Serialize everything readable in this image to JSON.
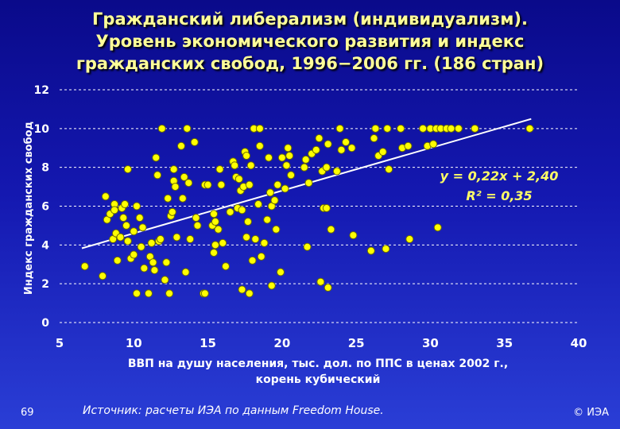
{
  "title_lines": [
    "Гражданский либерализм (индивидуализм).",
    "Уровень экономического развития и индекс",
    "гражданских свобод, 1996−2006 гг. (186 стран)"
  ],
  "page_number": "69",
  "source": "Источник: расчеты ИЭА по данным Freedom House.",
  "copyright": "© ИЭА",
  "colors": {
    "point": "#ffff00",
    "point_stroke": "#6b6b00",
    "trendline": "#ffffff",
    "annotation": "#ffff66"
  },
  "chart_data": {
    "type": "scatter",
    "xlabel_lines": [
      "ВВП на душу населения, тыс. дол. по ППС в ценах 2002 г.,",
      "корень кубический"
    ],
    "ylabel": "Индекс гражданских свобод",
    "xlim": [
      5,
      40
    ],
    "ylim": [
      0,
      12
    ],
    "x_ticks": [
      "5",
      "10",
      "15",
      "20",
      "25",
      "30",
      "35",
      "40"
    ],
    "y_ticks": [
      "0",
      "2",
      "4",
      "6",
      "8",
      "10",
      "12"
    ],
    "grid": "horizontal dashed",
    "trendline": {
      "slope": 0.22,
      "intercept": 2.4,
      "x_range": [
        6.5,
        36.8
      ]
    },
    "equation": "y = 0,22x + 2,40",
    "r_squared": "R² = 0,35",
    "points": [
      [
        6.7,
        2.9
      ],
      [
        7.9,
        2.4
      ],
      [
        8.1,
        6.5
      ],
      [
        8.2,
        5.3
      ],
      [
        8.4,
        5.6
      ],
      [
        8.6,
        4.3
      ],
      [
        8.7,
        6.1
      ],
      [
        8.7,
        5.8
      ],
      [
        8.8,
        4.6
      ],
      [
        8.9,
        3.2
      ],
      [
        9.1,
        4.4
      ],
      [
        9.2,
        5.9
      ],
      [
        9.3,
        5.4
      ],
      [
        9.4,
        6.1
      ],
      [
        9.5,
        5.0
      ],
      [
        9.6,
        4.2
      ],
      [
        9.6,
        7.9
      ],
      [
        9.8,
        3.3
      ],
      [
        10.0,
        3.5
      ],
      [
        10.0,
        4.7
      ],
      [
        10.2,
        6.0
      ],
      [
        10.2,
        1.5
      ],
      [
        10.4,
        5.4
      ],
      [
        10.5,
        3.9
      ],
      [
        10.6,
        4.9
      ],
      [
        10.7,
        2.8
      ],
      [
        11.0,
        1.5
      ],
      [
        11.1,
        3.4
      ],
      [
        11.2,
        4.1
      ],
      [
        11.3,
        3.1
      ],
      [
        11.4,
        2.7
      ],
      [
        11.5,
        8.5
      ],
      [
        11.6,
        7.6
      ],
      [
        11.7,
        4.2
      ],
      [
        11.8,
        4.3
      ],
      [
        11.9,
        10.0
      ],
      [
        12.1,
        2.2
      ],
      [
        12.2,
        3.1
      ],
      [
        12.3,
        6.4
      ],
      [
        12.4,
        1.5
      ],
      [
        12.5,
        5.5
      ],
      [
        12.6,
        5.7
      ],
      [
        12.7,
        7.3
      ],
      [
        12.7,
        7.9
      ],
      [
        12.8,
        7.0
      ],
      [
        12.9,
        4.4
      ],
      [
        13.2,
        9.1
      ],
      [
        13.3,
        6.4
      ],
      [
        13.4,
        7.5
      ],
      [
        13.5,
        2.6
      ],
      [
        13.6,
        10.0
      ],
      [
        13.7,
        7.2
      ],
      [
        13.8,
        4.3
      ],
      [
        14.1,
        9.3
      ],
      [
        14.2,
        5.4
      ],
      [
        14.3,
        5.0
      ],
      [
        14.7,
        1.5
      ],
      [
        14.8,
        7.1
      ],
      [
        14.8,
        1.5
      ],
      [
        15.0,
        7.1
      ],
      [
        15.3,
        5.0
      ],
      [
        15.4,
        5.6
      ],
      [
        15.4,
        3.6
      ],
      [
        15.5,
        4.0
      ],
      [
        15.5,
        5.2
      ],
      [
        15.7,
        4.8
      ],
      [
        15.8,
        7.9
      ],
      [
        15.9,
        7.1
      ],
      [
        16.0,
        4.1
      ],
      [
        16.2,
        2.9
      ],
      [
        16.5,
        5.7
      ],
      [
        16.7,
        8.3
      ],
      [
        16.8,
        8.1
      ],
      [
        16.9,
        7.5
      ],
      [
        17.0,
        5.9
      ],
      [
        17.1,
        7.4
      ],
      [
        17.2,
        6.8
      ],
      [
        17.3,
        5.8
      ],
      [
        17.3,
        1.7
      ],
      [
        17.4,
        7.0
      ],
      [
        17.5,
        8.8
      ],
      [
        17.6,
        8.6
      ],
      [
        17.6,
        4.4
      ],
      [
        17.7,
        5.2
      ],
      [
        17.8,
        7.1
      ],
      [
        17.8,
        1.5
      ],
      [
        17.9,
        8.1
      ],
      [
        18.0,
        3.2
      ],
      [
        18.1,
        10.0
      ],
      [
        18.2,
        4.3
      ],
      [
        18.4,
        6.1
      ],
      [
        18.5,
        10.0
      ],
      [
        18.5,
        9.1
      ],
      [
        18.6,
        3.4
      ],
      [
        18.8,
        4.1
      ],
      [
        19.0,
        5.3
      ],
      [
        19.1,
        8.5
      ],
      [
        19.2,
        6.7
      ],
      [
        19.3,
        6.0
      ],
      [
        19.3,
        1.9
      ],
      [
        19.5,
        6.3
      ],
      [
        19.6,
        4.8
      ],
      [
        19.7,
        7.1
      ],
      [
        19.9,
        2.6
      ],
      [
        20.0,
        8.5
      ],
      [
        20.2,
        6.9
      ],
      [
        20.3,
        8.1
      ],
      [
        20.4,
        9.0
      ],
      [
        20.5,
        8.6
      ],
      [
        20.6,
        7.6
      ],
      [
        21.5,
        8.0
      ],
      [
        21.6,
        8.4
      ],
      [
        21.7,
        3.9
      ],
      [
        21.8,
        7.2
      ],
      [
        22.0,
        8.7
      ],
      [
        22.3,
        8.9
      ],
      [
        22.5,
        9.5
      ],
      [
        22.6,
        2.1
      ],
      [
        22.7,
        7.8
      ],
      [
        22.8,
        5.9
      ],
      [
        23.0,
        5.9
      ],
      [
        23.0,
        8.0
      ],
      [
        23.1,
        1.8
      ],
      [
        23.1,
        9.2
      ],
      [
        23.3,
        4.8
      ],
      [
        23.7,
        7.8
      ],
      [
        23.9,
        10.0
      ],
      [
        24.0,
        8.9
      ],
      [
        24.3,
        9.3
      ],
      [
        24.7,
        9.0
      ],
      [
        24.8,
        4.5
      ],
      [
        26.0,
        3.7
      ],
      [
        26.2,
        9.5
      ],
      [
        26.3,
        10.0
      ],
      [
        26.5,
        8.6
      ],
      [
        26.8,
        8.8
      ],
      [
        27.0,
        3.8
      ],
      [
        27.1,
        10.0
      ],
      [
        27.2,
        7.9
      ],
      [
        28.0,
        10.0
      ],
      [
        28.1,
        9.0
      ],
      [
        28.5,
        9.1
      ],
      [
        28.6,
        4.3
      ],
      [
        29.5,
        10.0
      ],
      [
        29.8,
        9.1
      ],
      [
        30.0,
        10.0
      ],
      [
        30.2,
        9.2
      ],
      [
        30.4,
        10.0
      ],
      [
        30.5,
        4.9
      ],
      [
        30.7,
        10.0
      ],
      [
        31.1,
        10.0
      ],
      [
        31.4,
        10.0
      ],
      [
        31.9,
        10.0
      ],
      [
        33.0,
        10.0
      ],
      [
        36.7,
        10.0
      ]
    ]
  }
}
